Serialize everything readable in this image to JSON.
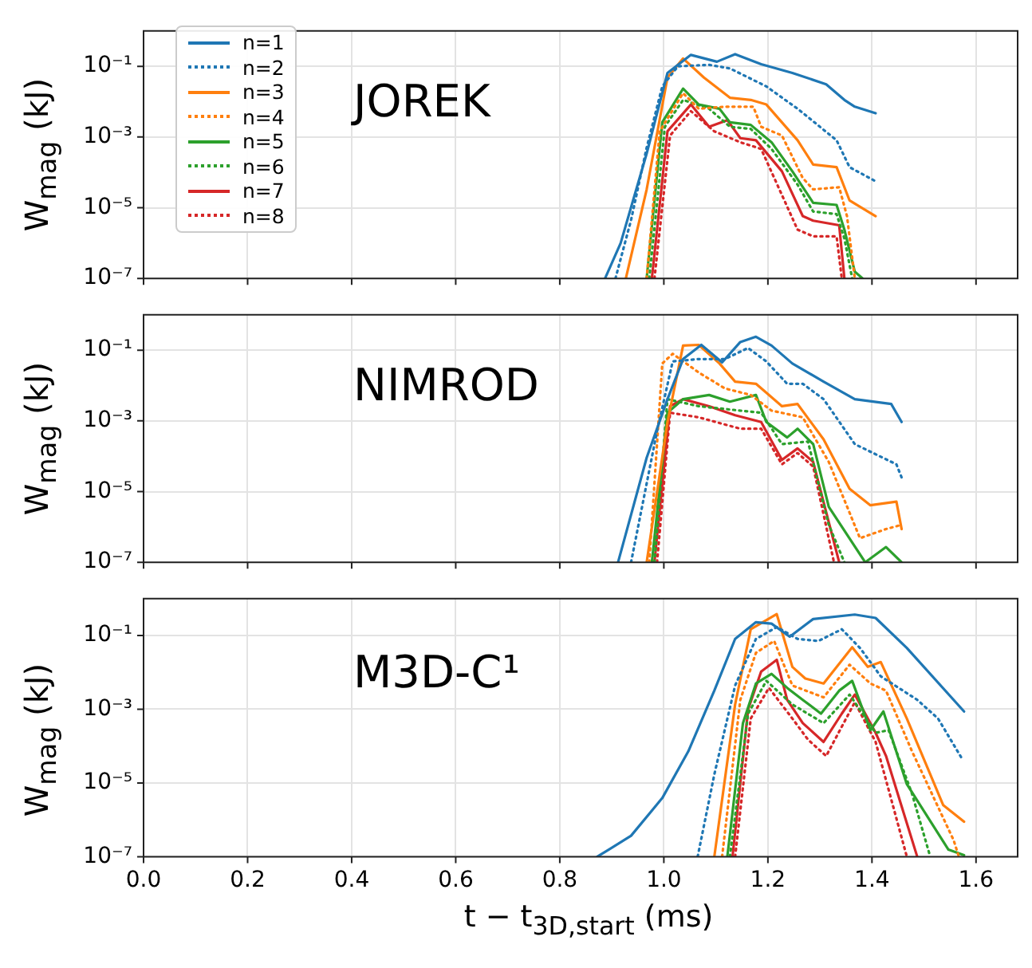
{
  "chart_data": [
    {
      "type": "line",
      "ylabel": "W$_{mag}$ (kJ)",
      "annotations": [
        "JOREK"
      ],
      "log": "y",
      "grid": true,
      "legend": "top left",
      "tick_labels": "y",
      "xlim": [
        0,
        1.68
      ],
      "xticks": [
        0,
        0.2,
        0.4,
        0.6,
        0.8,
        1,
        1.2,
        1.4,
        1.6
      ],
      "ylim": [
        1e-07,
        1
      ],
      "yticks": [
        {
          "value": 1e-07,
          "label": "10⁻⁷"
        },
        {
          "value": 1e-05,
          "label": "10⁻⁵"
        },
        {
          "value": 0.001,
          "label": "10⁻³"
        },
        {
          "value": 0.1,
          "label": "10⁻¹"
        }
      ],
      "series": [
        {
          "name": "n=1",
          "color": "#1f77b4",
          "line_style": "solid",
          "x": [
            0.887,
            0.917,
            0.967,
            1.007,
            1.052,
            1.102,
            1.137,
            1.187,
            1.247,
            1.312,
            1.347,
            1.367,
            1.407
          ],
          "values": [
            1e-07,
            1e-06,
            0.00034,
            0.065,
            0.21,
            0.135,
            0.22,
            0.115,
            0.065,
            0.031,
            0.0112,
            0.0072,
            0.0047
          ]
        },
        {
          "name": "n=2",
          "color": "#1f77b4",
          "line_style": "dotted",
          "x": [
            0.907,
            0.937,
            0.967,
            0.997,
            1.027,
            1.087,
            1.127,
            1.197,
            1.257,
            1.332,
            1.357,
            1.407
          ],
          "values": [
            1e-07,
            4.5e-06,
            0.0005,
            0.027,
            0.1,
            0.11,
            0.087,
            0.027,
            0.0063,
            0.00081,
            0.00014,
            5.6e-05
          ]
        },
        {
          "name": "n=3",
          "color": "#ff7f0e",
          "line_style": "solid",
          "x": [
            0.927,
            0.967,
            1.007,
            1.037,
            1.077,
            1.127,
            1.167,
            1.197,
            1.257,
            1.287,
            1.332,
            1.357,
            1.407
          ],
          "values": [
            1e-07,
            3.3e-05,
            0.048,
            0.166,
            0.048,
            0.0129,
            0.0112,
            0.0083,
            0.00081,
            0.000166,
            0.00014,
            1.6e-05,
            5.8e-06
          ]
        },
        {
          "name": "n=4",
          "color": "#ff7f0e",
          "line_style": "dotted",
          "x": [
            0.967,
            0.992,
            1.037,
            1.067,
            1.117,
            1.172,
            1.187,
            1.227,
            1.267,
            1.287,
            1.337,
            1.352,
            1.367
          ],
          "values": [
            1e-07,
            0.00145,
            0.0174,
            0.0063,
            0.0072,
            0.0072,
            0.00195,
            0.0011,
            6.9e-05,
            3.3e-05,
            3.8e-05,
            5.8e-06,
            1e-07
          ]
        },
        {
          "name": "n=5",
          "color": "#2ca02c",
          "line_style": "solid",
          "x": [
            0.967,
            0.997,
            1.037,
            1.067,
            1.107,
            1.127,
            1.167,
            1.207,
            1.247,
            1.287,
            1.332,
            1.347,
            1.367,
            1.382
          ],
          "values": [
            1e-07,
            0.0026,
            0.0234,
            0.0083,
            0.0063,
            0.0026,
            0.0022,
            0.00071,
            0.000107,
            1.38e-05,
            1.2e-05,
            2.4e-06,
            1.55e-07,
            1e-07
          ]
        },
        {
          "name": "n=6",
          "color": "#2ca02c",
          "line_style": "dotted",
          "x": [
            0.972,
            1.002,
            1.037,
            1.087,
            1.127,
            1.167,
            1.207,
            1.257,
            1.287,
            1.332,
            1.347,
            1.362
          ],
          "values": [
            1e-07,
            0.00195,
            0.0112,
            0.0063,
            0.00195,
            0.0017,
            0.00046,
            4.5e-05,
            7.8e-06,
            6.6e-06,
            1.35e-06,
            1e-07
          ]
        },
        {
          "name": "n=7",
          "color": "#d62728",
          "line_style": "solid",
          "x": [
            0.977,
            1.007,
            1.052,
            1.087,
            1.122,
            1.147,
            1.177,
            1.227,
            1.267,
            1.287,
            1.337,
            1.347
          ],
          "values": [
            1e-07,
            0.00145,
            0.0083,
            0.00195,
            0.003,
            0.00093,
            0.00081,
            0.000107,
            5.8e-06,
            4.3e-06,
            3.2e-06,
            1e-07
          ]
        },
        {
          "name": "n=8",
          "color": "#d62728",
          "line_style": "dotted",
          "x": [
            0.982,
            1.012,
            1.052,
            1.097,
            1.147,
            1.187,
            1.257,
            1.287,
            1.332,
            1.342
          ],
          "values": [
            1e-07,
            0.0011,
            0.0054,
            0.00145,
            0.00071,
            0.00046,
            2.4e-06,
            1.55e-06,
            1.55e-06,
            1e-07
          ]
        }
      ]
    },
    {
      "type": "line",
      "ylabel": "W$_{mag}$ (kJ)",
      "annotations": [
        "NIMROD"
      ],
      "log": "y",
      "grid": true,
      "tick_labels": "y",
      "xlim": [
        0,
        1.68
      ],
      "xticks": [
        0,
        0.2,
        0.4,
        0.6,
        0.8,
        1,
        1.2,
        1.4,
        1.6
      ],
      "ylim": [
        1e-07,
        1
      ],
      "yticks": [
        {
          "value": 1e-07,
          "label": "10⁻⁷"
        },
        {
          "value": 1e-05,
          "label": "10⁻⁵"
        },
        {
          "value": 0.001,
          "label": "10⁻³"
        },
        {
          "value": 0.1,
          "label": "10⁻¹"
        }
      ],
      "series": [
        {
          "color": "#1f77b4",
          "line_style": "solid",
          "x": [
            0.912,
            0.967,
            1.007,
            1.037,
            1.072,
            1.112,
            1.147,
            1.177,
            1.207,
            1.247,
            1.307,
            1.367,
            1.437,
            1.457
          ],
          "values": [
            1e-07,
            9.1e-05,
            0.0041,
            0.056,
            0.141,
            0.045,
            0.17,
            0.24,
            0.135,
            0.042,
            0.0129,
            0.0041,
            0.003,
            0.00093
          ]
        },
        {
          "color": "#1f77b4",
          "line_style": "dotted",
          "x": [
            0.937,
            0.987,
            1.017,
            1.067,
            1.117,
            1.162,
            1.197,
            1.237,
            1.267,
            1.307,
            1.367,
            1.447,
            1.457
          ],
          "values": [
            1e-07,
            0.00052,
            0.048,
            0.056,
            0.056,
            0.115,
            0.048,
            0.0112,
            0.0112,
            0.0041,
            0.00022,
            5.9e-05,
            2.5e-05
          ]
        },
        {
          "color": "#ff7f0e",
          "line_style": "solid",
          "x": [
            0.967,
            1.007,
            1.037,
            1.067,
            1.107,
            1.137,
            1.177,
            1.227,
            1.257,
            1.307,
            1.357,
            1.397,
            1.447,
            1.457
          ],
          "values": [
            1e-07,
            0.00093,
            0.135,
            0.141,
            0.042,
            0.0129,
            0.0112,
            0.0026,
            0.003,
            0.0003,
            1.2e-05,
            4.1e-06,
            5.2e-06,
            8.7e-07
          ]
        },
        {
          "color": "#ff7f0e",
          "line_style": "dotted",
          "x": [
            0.972,
            0.997,
            1.017,
            1.067,
            1.117,
            1.167,
            1.207,
            1.267,
            1.317,
            1.377,
            1.427,
            1.457
          ],
          "values": [
            1e-07,
            0.042,
            0.079,
            0.0234,
            0.0083,
            0.0054,
            0.00195,
            0.00126,
            6.9e-05,
            4.8e-07,
            8.7e-07,
            1.15e-06
          ]
        },
        {
          "color": "#2ca02c",
          "line_style": "solid",
          "x": [
            0.977,
            1.007,
            1.037,
            1.087,
            1.127,
            1.177,
            1.197,
            1.237,
            1.257,
            1.287,
            1.317,
            1.387,
            1.427,
            1.457
          ],
          "values": [
            1e-07,
            0.0017,
            0.0041,
            0.0054,
            0.0035,
            0.0054,
            0.00093,
            0.00034,
            0.0006,
            0.00022,
            3.7e-06,
            1e-07,
            2.7e-07,
            1e-07
          ]
        },
        {
          "color": "#2ca02c",
          "line_style": "dotted",
          "x": [
            0.982,
            1.007,
            1.067,
            1.147,
            1.187,
            1.227,
            1.277,
            1.317,
            1.347
          ],
          "values": [
            1e-07,
            0.0041,
            0.0026,
            0.00195,
            0.0017,
            0.00022,
            0.00026,
            1.15e-06,
            1e-07
          ]
        },
        {
          "color": "#d62728",
          "line_style": "solid",
          "x": [
            0.982,
            1.012,
            1.037,
            1.087,
            1.137,
            1.187,
            1.227,
            1.257,
            1.287,
            1.337
          ],
          "values": [
            1e-07,
            0.0026,
            0.0041,
            0.0026,
            0.00145,
            0.00093,
            7.9e-05,
            0.000166,
            6.9e-05,
            1e-07
          ]
        },
        {
          "color": "#d62728",
          "line_style": "dotted",
          "x": [
            0.987,
            1.012,
            1.067,
            1.147,
            1.187,
            1.227,
            1.257,
            1.287,
            1.327
          ],
          "values": [
            1e-07,
            0.0017,
            0.00126,
            0.0006,
            0.0006,
            5.9e-05,
            0.000123,
            5.1e-05,
            1e-07
          ]
        }
      ]
    },
    {
      "type": "line",
      "ylabel": "W$_{mag}$ (kJ)",
      "xlabel": "t − t$_{3D,start}$ (ms)",
      "annotations": [
        "M3D-C¹"
      ],
      "log": "y",
      "grid": true,
      "xlim": [
        0,
        1.68
      ],
      "xticks": [
        {
          "value": 0,
          "label": "0.0"
        },
        0.2,
        0.4,
        0.6,
        0.8,
        {
          "value": 1,
          "label": "1.0"
        },
        1.2,
        1.4,
        1.6
      ],
      "ylim": [
        1e-07,
        1
      ],
      "yticks": [
        {
          "value": 1e-07,
          "label": "10⁻⁷"
        },
        {
          "value": 1e-05,
          "label": "10⁻⁵"
        },
        {
          "value": 0.001,
          "label": "10⁻³"
        },
        {
          "value": 0.1,
          "label": "10⁻¹"
        }
      ],
      "series": [
        {
          "color": "#1f77b4",
          "line_style": "solid",
          "x": [
            0.872,
            0.937,
            0.997,
            1.047,
            1.097,
            1.137,
            1.177,
            1.207,
            1.242,
            1.287,
            1.367,
            1.407,
            1.467,
            1.577
          ],
          "values": [
            1e-07,
            3.7e-07,
            3.9e-06,
            7.2e-05,
            0.0032,
            0.081,
            0.23,
            0.21,
            0.093,
            0.28,
            0.37,
            0.3,
            0.046,
            0.00087
          ]
        },
        {
          "color": "#1f77b4",
          "line_style": "dotted",
          "x": [
            1.065,
            1.097,
            1.137,
            1.177,
            1.217,
            1.257,
            1.297,
            1.342,
            1.377,
            1.417,
            1.487,
            1.527,
            1.575
          ],
          "values": [
            1e-07,
            1.7e-05,
            0.0044,
            0.081,
            0.17,
            0.081,
            0.071,
            0.148,
            0.046,
            0.0078,
            0.0018,
            0.00056,
            4.1e-05
          ]
        },
        {
          "color": "#ff7f0e",
          "line_style": "solid",
          "x": [
            1.097,
            1.137,
            1.167,
            1.217,
            1.247,
            1.272,
            1.307,
            1.362,
            1.392,
            1.417,
            1.467,
            1.537,
            1.577
          ],
          "values": [
            1e-07,
            0.00135,
            0.148,
            0.38,
            0.0141,
            0.0068,
            0.005,
            0.048,
            0.0141,
            0.019,
            0.00056,
            2.5e-06,
            8.9e-07
          ]
        },
        {
          "color": "#ff7f0e",
          "line_style": "dotted",
          "x": [
            1.112,
            1.147,
            1.177,
            1.212,
            1.247,
            1.307,
            1.357,
            1.397,
            1.427,
            1.477,
            1.557,
            1.567
          ],
          "values": [
            1e-07,
            0.0018,
            0.034,
            0.071,
            0.0044,
            0.0021,
            0.0162,
            0.005,
            0.0032,
            7.2e-05,
            2.8e-07,
            1e-07
          ]
        },
        {
          "color": "#2ca02c",
          "line_style": "solid",
          "x": [
            1.122,
            1.152,
            1.177,
            1.207,
            1.237,
            1.267,
            1.302,
            1.337,
            1.362,
            1.397,
            1.422,
            1.467,
            1.547,
            1.577
          ],
          "values": [
            1e-07,
            0.00042,
            0.005,
            0.0091,
            0.0038,
            0.0018,
            0.00076,
            0.0032,
            0.0059,
            0.00027,
            0.00087,
            9.3e-06,
            1.55e-07,
            1.1e-07
          ]
        },
        {
          "color": "#2ca02c",
          "line_style": "dotted",
          "x": [
            1.127,
            1.162,
            1.197,
            1.247,
            1.307,
            1.357,
            1.407,
            1.432,
            1.477,
            1.512
          ],
          "values": [
            1e-07,
            0.00076,
            0.0059,
            0.00135,
            0.00042,
            0.0025,
            0.00023,
            0.00027,
            5.1e-06,
            1e-07
          ]
        },
        {
          "color": "#d62728",
          "line_style": "solid",
          "x": [
            1.132,
            1.162,
            1.187,
            1.217,
            1.237,
            1.267,
            1.307,
            1.342,
            1.367,
            1.407,
            1.427,
            1.487
          ],
          "values": [
            1e-07,
            0.001,
            0.0105,
            0.022,
            0.0018,
            0.00042,
            0.00013,
            0.00076,
            0.0025,
            0.00023,
            5.4e-05,
            1e-07
          ]
        },
        {
          "color": "#d62728",
          "line_style": "dotted",
          "x": [
            1.137,
            1.167,
            1.202,
            1.247,
            1.277,
            1.312,
            1.367,
            1.407,
            1.467
          ],
          "values": [
            1e-07,
            0.00056,
            0.0038,
            0.00056,
            0.00015,
            5.4e-05,
            0.00155,
            0.00013,
            1e-07
          ]
        }
      ]
    }
  ]
}
